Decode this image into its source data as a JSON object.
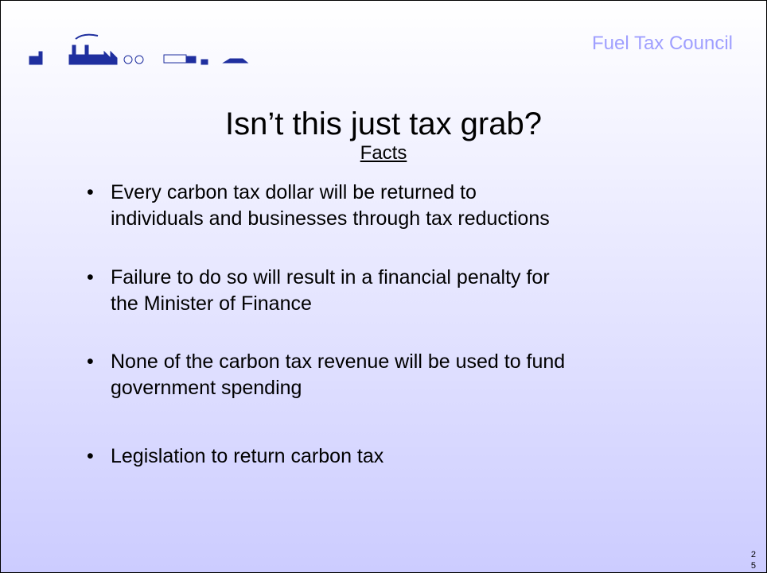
{
  "header": {
    "organization": "Fuel Tax Council"
  },
  "slide": {
    "title": "Isn’t this just tax grab?",
    "subtitle": "Facts",
    "bullets": [
      [
        "Every carbon tax dollar will be returned to",
        "individuals and businesses through tax reductions"
      ],
      [
        "Failure to do so will result in a financial penalty for",
        "the Minister of Finance"
      ],
      [
        "None of the carbon tax revenue will be used to fund",
        "government spending"
      ],
      [
        "Legislation to return carbon tax"
      ]
    ],
    "page_number": [
      "2",
      "5"
    ]
  }
}
